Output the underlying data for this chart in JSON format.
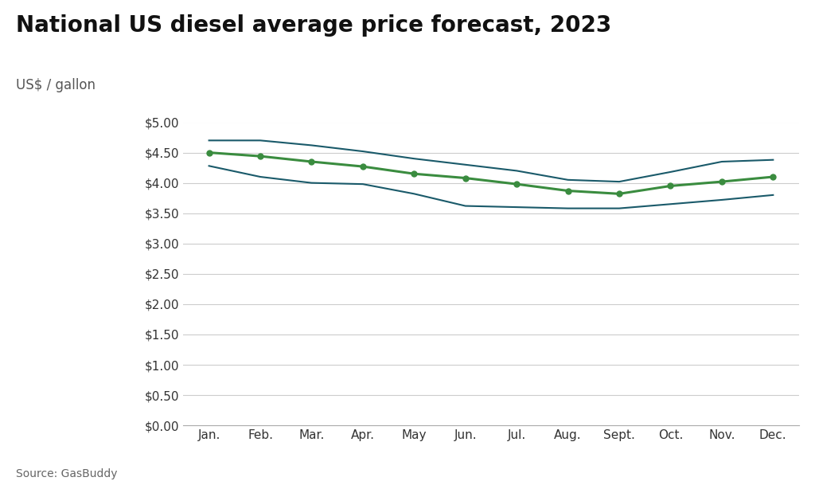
{
  "title": "National US diesel average price forecast, 2023",
  "ylabel": "US$ / gallon",
  "source": "Source: GasBuddy",
  "months": [
    "Jan.",
    "Feb.",
    "Mar.",
    "Apr.",
    "May",
    "Jun.",
    "Jul.",
    "Aug.",
    "Sept.",
    "Oct.",
    "Nov.",
    "Dec."
  ],
  "green_line": [
    4.5,
    4.44,
    4.35,
    4.27,
    4.15,
    4.08,
    3.98,
    3.87,
    3.82,
    3.95,
    4.02,
    4.1
  ],
  "upper_band": [
    4.7,
    4.7,
    4.62,
    4.52,
    4.4,
    4.3,
    4.2,
    4.05,
    4.02,
    4.18,
    4.35,
    4.38
  ],
  "lower_band": [
    4.28,
    4.1,
    4.0,
    3.98,
    3.82,
    3.62,
    3.6,
    3.58,
    3.58,
    3.65,
    3.72,
    3.8
  ],
  "green_color": "#3a8c3f",
  "band_color": "#1a5a6a",
  "ylim": [
    0.0,
    5.0
  ],
  "yticks": [
    0.0,
    0.5,
    1.0,
    1.5,
    2.0,
    2.5,
    3.0,
    3.5,
    4.0,
    4.5,
    5.0
  ],
  "background_color": "#ffffff",
  "title_fontsize": 20,
  "label_fontsize": 12,
  "tick_fontsize": 11,
  "source_fontsize": 10
}
